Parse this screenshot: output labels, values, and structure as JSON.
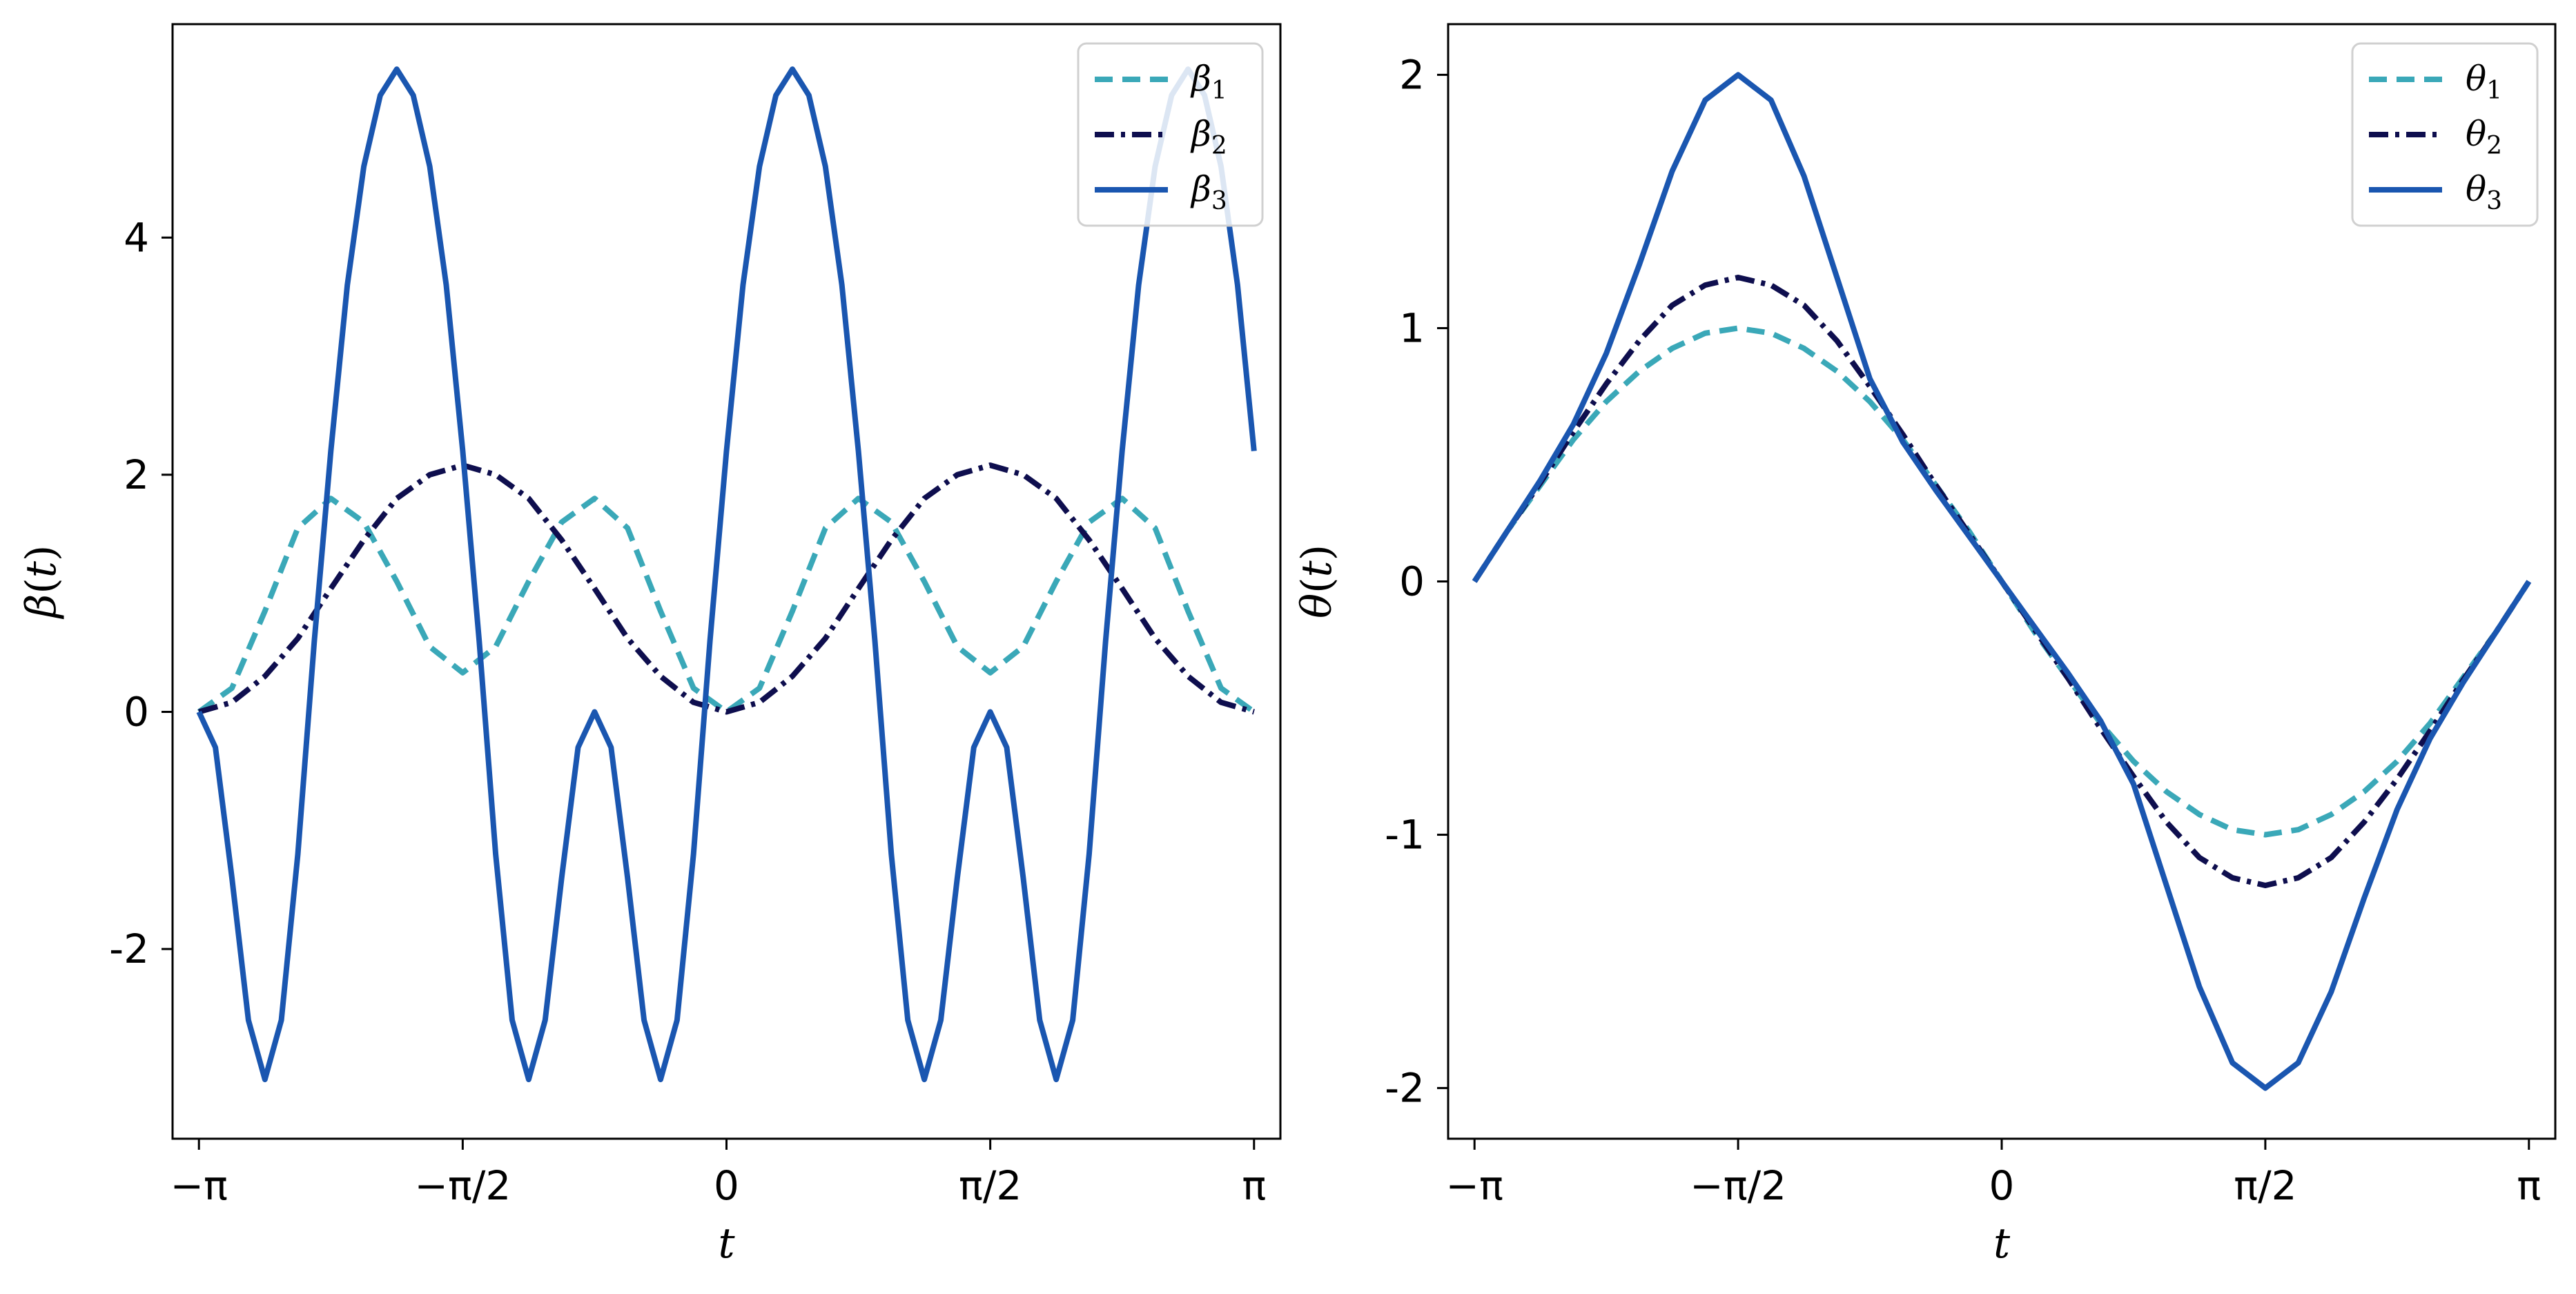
{
  "chart_data": [
    {
      "type": "line",
      "ylabel_base": "β",
      "ylabel_arg": "t",
      "xlabel": "t",
      "xlim": [
        -3.2987,
        3.2987
      ],
      "ylim": [
        -3.6,
        5.8
      ],
      "grid": false,
      "legend_position": "top-right",
      "x_ticks": [
        {
          "value": -3.14159,
          "label": "−π"
        },
        {
          "value": -1.5708,
          "label": "−π/2"
        },
        {
          "value": 0,
          "label": "0"
        },
        {
          "value": 1.5708,
          "label": "π/2"
        },
        {
          "value": 3.14159,
          "label": "π"
        }
      ],
      "y_ticks": [
        {
          "value": -2,
          "label": "-2"
        },
        {
          "value": 0,
          "label": "0"
        },
        {
          "value": 2,
          "label": "2"
        },
        {
          "value": 4,
          "label": "4"
        }
      ],
      "series": [
        {
          "name": "β",
          "sub": "1",
          "color": "#3aa8b8",
          "dash": "dashed",
          "x": [
            -3.1416,
            -2.9452,
            -2.7489,
            -2.5525,
            -2.3562,
            -2.1598,
            -1.9635,
            -1.7671,
            -1.5708,
            -1.3744,
            -1.1781,
            -0.9817,
            -0.7854,
            -0.589,
            -0.3927,
            -0.1963,
            0,
            0.1963,
            0.3927,
            0.589,
            0.7854,
            0.9817,
            1.1781,
            1.3744,
            1.5708,
            1.7671,
            1.9635,
            2.1598,
            2.3562,
            2.5525,
            2.7489,
            2.9452,
            3.1416
          ],
          "y": [
            0.0,
            0.2,
            0.85,
            1.55,
            1.8,
            1.6,
            1.1,
            0.55,
            0.33,
            0.55,
            1.1,
            1.6,
            1.8,
            1.55,
            0.85,
            0.2,
            0.0,
            0.2,
            0.85,
            1.55,
            1.8,
            1.6,
            1.1,
            0.55,
            0.33,
            0.55,
            1.1,
            1.6,
            1.8,
            1.55,
            0.85,
            0.2,
            0.0
          ]
        },
        {
          "name": "β",
          "sub": "2",
          "color": "#0e0e4e",
          "dash": "dashdot",
          "x": [
            -3.1416,
            -2.9452,
            -2.7489,
            -2.5525,
            -2.3562,
            -2.1598,
            -1.9635,
            -1.7671,
            -1.5708,
            -1.3744,
            -1.1781,
            -0.9817,
            -0.7854,
            -0.589,
            -0.3927,
            -0.1963,
            0,
            0.1963,
            0.3927,
            0.589,
            0.7854,
            0.9817,
            1.1781,
            1.3744,
            1.5708,
            1.7671,
            1.9635,
            2.1598,
            2.3562,
            2.5525,
            2.7489,
            2.9452,
            3.1416
          ],
          "y": [
            0.0,
            0.08,
            0.3,
            0.62,
            1.04,
            1.45,
            1.8,
            2.0,
            2.08,
            2.0,
            1.8,
            1.45,
            1.04,
            0.62,
            0.3,
            0.08,
            0.0,
            0.08,
            0.3,
            0.62,
            1.04,
            1.45,
            1.8,
            2.0,
            2.08,
            2.0,
            1.8,
            1.45,
            1.04,
            0.62,
            0.3,
            0.08,
            0.0
          ]
        },
        {
          "name": "β",
          "sub": "3",
          "color": "#1a56b0",
          "dash": "solid",
          "x": [
            -3.1416,
            -3.0434,
            -2.9452,
            -2.8471,
            -2.7489,
            -2.6507,
            -2.5525,
            -2.4544,
            -2.3562,
            -2.258,
            -2.1598,
            -2.0617,
            -1.9635,
            -1.8653,
            -1.7671,
            -1.669,
            -1.5708,
            -1.4726,
            -1.3744,
            -1.2763,
            -1.1781,
            -1.0799,
            -0.9817,
            -0.8836,
            -0.7854,
            -0.6872,
            -0.589,
            -0.4909,
            -0.3927,
            -0.2945,
            -0.1963,
            -0.0982,
            0,
            0.0982,
            0.1963,
            0.2945,
            0.3927,
            0.4909,
            0.589,
            0.6872,
            0.7854,
            0.8836,
            0.9817,
            1.0799,
            1.1781,
            1.2763,
            1.3744,
            1.4726,
            1.5708,
            1.669,
            1.7671,
            1.8653,
            1.9635,
            2.0617,
            2.1598,
            2.258,
            2.3562,
            2.4544,
            2.5525,
            2.6507,
            2.7489,
            2.8471,
            2.9452,
            3.0434,
            3.1416
          ],
          "y": [
            0.0,
            -0.3,
            -1.4,
            -2.6,
            -3.1,
            -2.6,
            -1.2,
            0.6,
            2.2,
            3.6,
            4.6,
            5.2,
            5.42,
            5.2,
            4.6,
            3.6,
            2.2,
            0.6,
            -1.2,
            -2.6,
            -3.1,
            -2.6,
            -1.4,
            -0.3,
            0.0,
            -0.3,
            -1.4,
            -2.6,
            -3.1,
            -2.6,
            -1.2,
            0.6,
            2.2,
            3.6,
            4.6,
            5.2,
            5.42,
            5.2,
            4.6,
            3.6,
            2.2,
            0.6,
            -1.2,
            -2.6,
            -3.1,
            -2.6,
            -1.4,
            -0.3,
            0.0,
            -0.3,
            -1.4,
            -2.6,
            -3.1,
            -2.6,
            -1.2,
            0.6,
            2.2,
            3.6,
            4.6,
            5.2,
            5.42,
            5.2,
            4.6,
            3.6,
            2.2
          ]
        }
      ]
    },
    {
      "type": "line",
      "ylabel_base": "θ",
      "ylabel_arg": "t",
      "xlabel": "t",
      "xlim": [
        -3.2987,
        3.2987
      ],
      "ylim": [
        -2.2,
        2.2
      ],
      "grid": false,
      "legend_position": "top-right",
      "x_ticks": [
        {
          "value": -3.14159,
          "label": "−π"
        },
        {
          "value": -1.5708,
          "label": "−π/2"
        },
        {
          "value": 0,
          "label": "0"
        },
        {
          "value": 1.5708,
          "label": "π/2"
        },
        {
          "value": 3.14159,
          "label": "π"
        }
      ],
      "y_ticks": [
        {
          "value": -2,
          "label": "-2"
        },
        {
          "value": -1,
          "label": "-1"
        },
        {
          "value": 0,
          "label": "0"
        },
        {
          "value": 1,
          "label": "1"
        },
        {
          "value": 2,
          "label": "2"
        }
      ],
      "series": [
        {
          "name": "θ",
          "sub": "1",
          "color": "#3aa8b8",
          "dash": "dashed",
          "x": [
            -3.1416,
            -2.9452,
            -2.7489,
            -2.5525,
            -2.3562,
            -2.1598,
            -1.9635,
            -1.7671,
            -1.5708,
            -1.3744,
            -1.1781,
            -0.9817,
            -0.7854,
            -0.589,
            -0.3927,
            -0.1963,
            0,
            0.1963,
            0.3927,
            0.589,
            0.7854,
            0.9817,
            1.1781,
            1.3744,
            1.5708,
            1.7671,
            1.9635,
            2.1598,
            2.3562,
            2.5525,
            2.7489,
            2.9452,
            3.1416
          ],
          "y": [
            0.0,
            0.2,
            0.38,
            0.56,
            0.71,
            0.83,
            0.92,
            0.98,
            1.0,
            0.98,
            0.92,
            0.83,
            0.71,
            0.56,
            0.38,
            0.2,
            0.0,
            -0.2,
            -0.38,
            -0.56,
            -0.71,
            -0.83,
            -0.92,
            -0.98,
            -1.0,
            -0.98,
            -0.92,
            -0.83,
            -0.71,
            -0.56,
            -0.38,
            -0.2,
            0.0
          ]
        },
        {
          "name": "θ",
          "sub": "2",
          "color": "#0e0e4e",
          "dash": "dashdot",
          "x": [
            -3.1416,
            -2.9452,
            -2.7489,
            -2.5525,
            -2.3562,
            -2.1598,
            -1.9635,
            -1.7671,
            -1.5708,
            -1.3744,
            -1.1781,
            -0.9817,
            -0.7854,
            -0.589,
            -0.3927,
            -0.1963,
            0,
            0.1963,
            0.3927,
            0.589,
            0.7854,
            0.9817,
            1.1781,
            1.3744,
            1.5708,
            1.7671,
            1.9635,
            2.1598,
            2.3562,
            2.5525,
            2.7489,
            2.9452,
            3.1416
          ],
          "y": [
            0.0,
            0.2,
            0.39,
            0.59,
            0.78,
            0.95,
            1.09,
            1.17,
            1.2,
            1.17,
            1.09,
            0.95,
            0.77,
            0.58,
            0.38,
            0.19,
            0.0,
            -0.19,
            -0.38,
            -0.58,
            -0.77,
            -0.95,
            -1.09,
            -1.17,
            -1.2,
            -1.17,
            -1.09,
            -0.95,
            -0.78,
            -0.59,
            -0.39,
            -0.2,
            0.0
          ]
        },
        {
          "name": "θ",
          "sub": "3",
          "color": "#1a56b0",
          "dash": "solid",
          "x": [
            -3.1416,
            -2.9452,
            -2.7489,
            -2.5525,
            -2.3562,
            -2.1598,
            -1.9635,
            -1.7671,
            -1.5708,
            -1.3744,
            -1.1781,
            -0.9817,
            -0.7854,
            -0.589,
            -0.3927,
            -0.1963,
            0,
            0.1963,
            0.3927,
            0.589,
            0.7854,
            0.9817,
            1.1781,
            1.3744,
            1.5708,
            1.7671,
            1.9635,
            2.1598,
            2.3562,
            2.5525,
            2.7489,
            2.9452,
            3.1416
          ],
          "y": [
            0.0,
            0.2,
            0.4,
            0.62,
            0.9,
            1.25,
            1.62,
            1.9,
            2.0,
            1.9,
            1.6,
            1.2,
            0.8,
            0.55,
            0.36,
            0.18,
            0.0,
            -0.18,
            -0.36,
            -0.55,
            -0.8,
            -1.2,
            -1.6,
            -1.9,
            -2.0,
            -1.9,
            -1.62,
            -1.25,
            -0.9,
            -0.62,
            -0.4,
            -0.2,
            0.0
          ]
        }
      ]
    }
  ]
}
